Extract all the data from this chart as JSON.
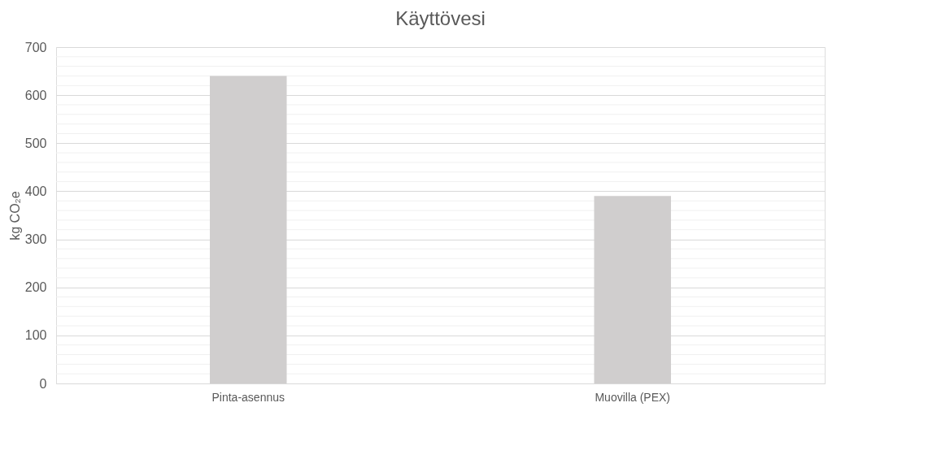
{
  "chart_data": {
    "type": "bar",
    "title": "Käyttövesi",
    "ylabel": "kg CO₂e",
    "categories": [
      "Pinta-asennus",
      "Muovilla (PEX)"
    ],
    "values": [
      640,
      390
    ],
    "color": "#d0cece",
    "ylim": [
      0,
      700
    ],
    "yticks": [
      0,
      {
        "value": 20,
        "label": null
      },
      {
        "value": 40,
        "label": null
      },
      {
        "value": 60,
        "label": null
      },
      {
        "value": 80,
        "label": null
      },
      100,
      {
        "value": 120,
        "label": null
      },
      {
        "value": 140,
        "label": null
      },
      {
        "value": 160,
        "label": null
      },
      {
        "value": 180,
        "label": null
      },
      200,
      {
        "value": 220,
        "label": null
      },
      {
        "value": 240,
        "label": null
      },
      {
        "value": 260,
        "label": null
      },
      {
        "value": 280,
        "label": null
      },
      300,
      {
        "value": 320,
        "label": null
      },
      {
        "value": 340,
        "label": null
      },
      {
        "value": 360,
        "label": null
      },
      {
        "value": 380,
        "label": null
      },
      400,
      {
        "value": 420,
        "label": null
      },
      {
        "value": 440,
        "label": null
      },
      {
        "value": 460,
        "label": null
      },
      {
        "value": 480,
        "label": null
      },
      500,
      {
        "value": 520,
        "label": null
      },
      {
        "value": 540,
        "label": null
      },
      {
        "value": 560,
        "label": null
      },
      {
        "value": 580,
        "label": null
      },
      600,
      {
        "value": 620,
        "label": null
      },
      {
        "value": 640,
        "label": null
      },
      {
        "value": 660,
        "label": null
      },
      {
        "value": 680,
        "label": null
      },
      700
    ],
    "grid": true
  }
}
